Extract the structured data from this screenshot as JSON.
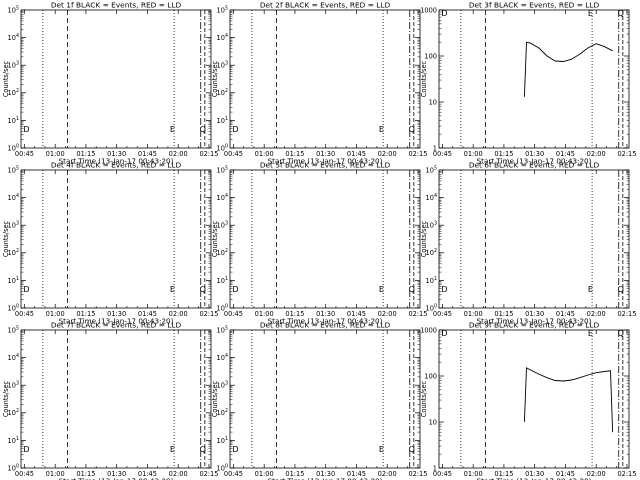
{
  "chart_data": [
    {
      "id": "1f",
      "type": "line",
      "title": "Det 1f BLACK = Events, RED = LLD",
      "xlabel": "Start Time (13-Jan-17 00:43:20)",
      "ylabel": "Counts/sec",
      "x_ticks": [
        "00:45",
        "01:00",
        "01:15",
        "01:30",
        "01:45",
        "02:00",
        "02:15"
      ],
      "y_ticks": [
        "10^0",
        "10^1",
        "10^2",
        "10^3",
        "10^4",
        "10^5"
      ],
      "y_scale": "log",
      "ylim_exp": [
        0,
        5
      ],
      "markers": [
        "D",
        "E",
        "Q"
      ],
      "series": []
    },
    {
      "id": "2f",
      "type": "line",
      "title": "Det 2f BLACK = Events, RED = LLD",
      "xlabel": "Start Time (13-Jan-17 00:43:20)",
      "ylabel": "Counts/sec",
      "x_ticks": [
        "00:45",
        "01:00",
        "01:15",
        "01:30",
        "01:45",
        "02:00",
        "02:15"
      ],
      "y_ticks": [
        "10^0",
        "10^1",
        "10^2",
        "10^3",
        "10^4",
        "10^5"
      ],
      "y_scale": "log",
      "ylim_exp": [
        0,
        5
      ],
      "markers": [
        "D",
        "E",
        "Q"
      ],
      "series": []
    },
    {
      "id": "3f",
      "type": "line",
      "title": "Det 3f BLACK = Events, RED = LLD",
      "xlabel": "Start Time (13-Jan-17 00:43:20)",
      "ylabel": "Counts/sec",
      "x_ticks": [
        "00:45",
        "01:00",
        "01:15",
        "01:30",
        "01:45",
        "02:00",
        "02:15"
      ],
      "y_ticks": [
        "1",
        "10",
        "100",
        "1000"
      ],
      "y_scale": "log",
      "ylim_exp": [
        0,
        3
      ],
      "markers": [
        "D",
        "E",
        "Q"
      ],
      "series": [
        {
          "x_min": [
            85,
            86,
            88,
            92,
            96,
            100,
            104,
            108,
            112,
            116,
            120,
            124,
            128
          ],
          "y": [
            13,
            200,
            190,
            150,
            100,
            78,
            76,
            85,
            110,
            150,
            185,
            160,
            130
          ]
        }
      ]
    },
    {
      "id": "4f",
      "type": "line",
      "title": "Det 4f BLACK = Events, RED = LLD",
      "xlabel": "Start Time (13-Jan-17 00:43:20)",
      "ylabel": "Counts/sec",
      "x_ticks": [
        "00:45",
        "01:00",
        "01:15",
        "01:30",
        "01:45",
        "02:00",
        "02:15"
      ],
      "y_ticks": [
        "10^0",
        "10^1",
        "10^2",
        "10^3",
        "10^4",
        "10^5"
      ],
      "y_scale": "log",
      "ylim_exp": [
        0,
        5
      ],
      "markers": [
        "D",
        "E",
        "Q"
      ],
      "series": []
    },
    {
      "id": "5f",
      "type": "line",
      "title": "Det 5f BLACK = Events, RED = LLD",
      "xlabel": "Start Time (13-Jan-17 00:43:20)",
      "ylabel": "Counts/sec",
      "x_ticks": [
        "00:45",
        "01:00",
        "01:15",
        "01:30",
        "01:45",
        "02:00",
        "02:15"
      ],
      "y_ticks": [
        "10^0",
        "10^1",
        "10^2",
        "10^3",
        "10^4",
        "10^5"
      ],
      "y_scale": "log",
      "ylim_exp": [
        0,
        5
      ],
      "markers": [
        "D",
        "E",
        "Q"
      ],
      "series": []
    },
    {
      "id": "6f",
      "type": "line",
      "title": "Det 6f BLACK = Events, RED = LLD",
      "xlabel": "Start Time (13-Jan-17 00:43:20)",
      "ylabel": "Counts/sec",
      "x_ticks": [
        "00:45",
        "01:00",
        "01:15",
        "01:30",
        "01:45",
        "02:00",
        "02:15"
      ],
      "y_ticks": [
        "10^0",
        "10^1",
        "10^2",
        "10^3",
        "10^4",
        "10^5"
      ],
      "y_scale": "log",
      "ylim_exp": [
        0,
        5
      ],
      "markers": [
        "D",
        "E",
        "Q"
      ],
      "series": []
    },
    {
      "id": "7f",
      "type": "line",
      "title": "Det 7f BLACK = Events, RED = LLD",
      "xlabel": "Start Time (13-Jan-17 00:43:20)",
      "ylabel": "Counts/sec",
      "x_ticks": [
        "00:45",
        "01:00",
        "01:15",
        "01:30",
        "01:45",
        "02:00",
        "02:15"
      ],
      "y_ticks": [
        "10^0",
        "10^1",
        "10^2",
        "10^3",
        "10^4",
        "10^5"
      ],
      "y_scale": "log",
      "ylim_exp": [
        0,
        5
      ],
      "markers": [
        "D",
        "E",
        "Q"
      ],
      "series": []
    },
    {
      "id": "8f",
      "type": "line",
      "title": "Det 8f BLACK = Events, RED = LLD",
      "xlabel": "Start Time (13-Jan-17 00:43:20)",
      "ylabel": "Counts/sec",
      "x_ticks": [
        "00:45",
        "01:00",
        "01:15",
        "01:30",
        "01:45",
        "02:00",
        "02:15"
      ],
      "y_ticks": [
        "10^0",
        "10^1",
        "10^2",
        "10^3",
        "10^4",
        "10^5"
      ],
      "y_scale": "log",
      "ylim_exp": [
        0,
        5
      ],
      "markers": [
        "D",
        "E",
        "Q"
      ],
      "series": []
    },
    {
      "id": "9f",
      "type": "line",
      "title": "Det 9f BLACK = Events, RED = LLD",
      "xlabel": "Start Time (13-Jan-17 00:43:20)",
      "ylabel": "Counts/sec",
      "x_ticks": [
        "00:45",
        "01:00",
        "01:15",
        "01:30",
        "01:45",
        "02:00",
        "02:15"
      ],
      "y_ticks": [
        "1",
        "10",
        "100",
        "1000"
      ],
      "y_scale": "log",
      "ylim_exp": [
        0,
        3
      ],
      "markers": [
        "D",
        "E",
        "Q"
      ],
      "series": [
        {
          "x_min": [
            85,
            86,
            88,
            92,
            96,
            100,
            104,
            108,
            112,
            116,
            120,
            124,
            127,
            128
          ],
          "y": [
            10,
            150,
            135,
            110,
            92,
            80,
            78,
            82,
            92,
            105,
            118,
            125,
            130,
            6
          ]
        }
      ]
    }
  ]
}
